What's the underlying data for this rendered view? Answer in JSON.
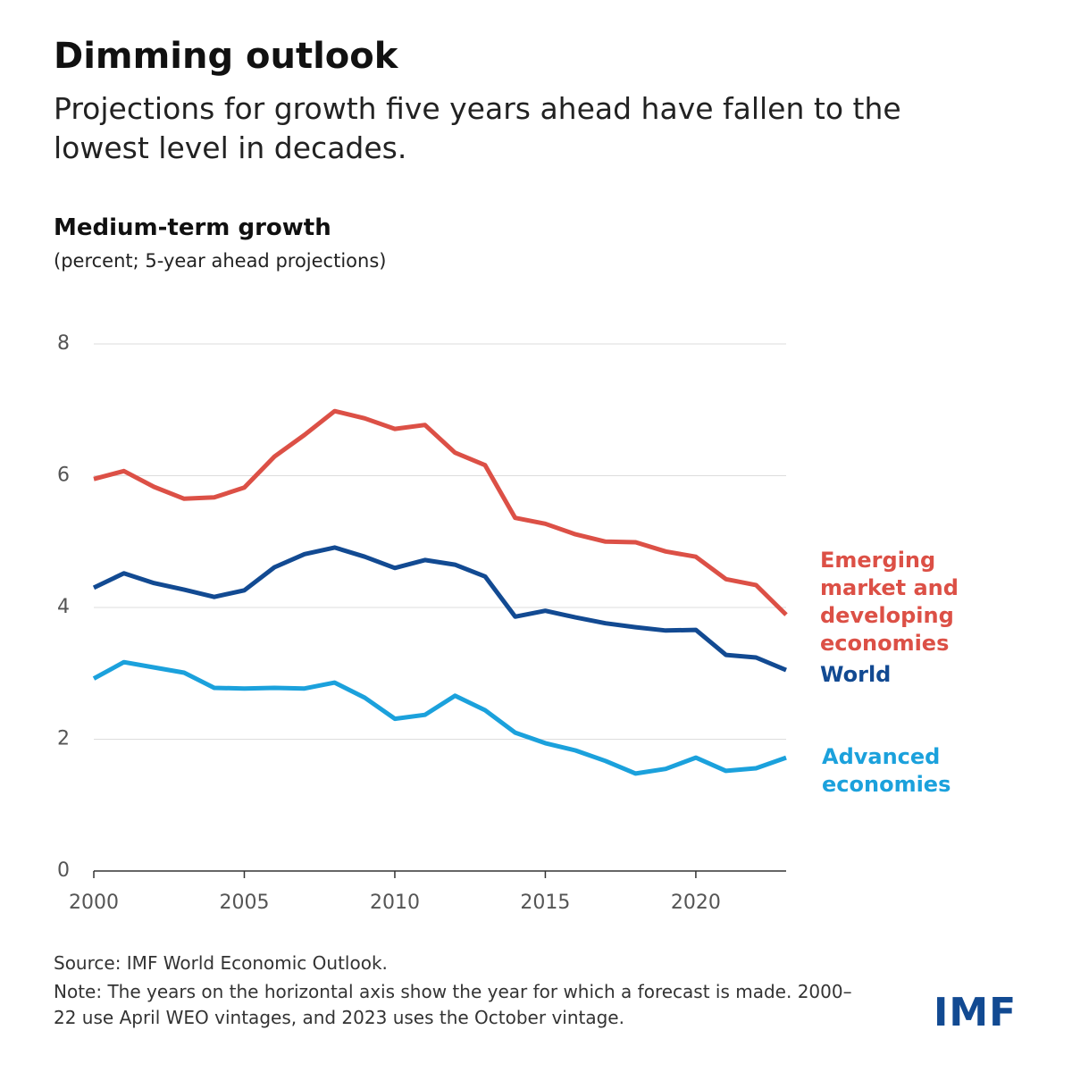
{
  "chart_data": {
    "type": "line",
    "title": "Dimming outlook",
    "subtitle": "Projections for growth five years ahead have fallen to the lowest level in decades.",
    "chart_title": "Medium-term growth",
    "y_label": "(percent; 5-year ahead projections)",
    "x": [
      2000,
      2001,
      2002,
      2003,
      2004,
      2005,
      2006,
      2007,
      2008,
      2009,
      2010,
      2011,
      2012,
      2013,
      2014,
      2015,
      2016,
      2017,
      2018,
      2019,
      2020,
      2021,
      2022,
      2023
    ],
    "xlim": [
      2000,
      2023
    ],
    "xticks": [
      2000,
      2005,
      2010,
      2015,
      2020
    ],
    "ylim": [
      0,
      8
    ],
    "yticks": [
      0,
      2,
      4,
      6,
      8
    ],
    "grid": true,
    "series": [
      {
        "name": "Emerging market and developing economies",
        "color": "#dc5046",
        "values": [
          5.95,
          6.07,
          5.83,
          5.65,
          5.67,
          5.82,
          6.29,
          6.62,
          6.98,
          6.87,
          6.71,
          6.77,
          6.35,
          6.16,
          5.36,
          5.27,
          5.11,
          5.0,
          4.99,
          4.85,
          4.77,
          4.43,
          4.34,
          3.89
        ]
      },
      {
        "name": "World",
        "color": "#124a92",
        "values": [
          4.3,
          4.52,
          4.37,
          4.27,
          4.16,
          4.26,
          4.61,
          4.81,
          4.91,
          4.77,
          4.6,
          4.72,
          4.65,
          4.47,
          3.86,
          3.95,
          3.85,
          3.76,
          3.7,
          3.65,
          3.66,
          3.28,
          3.24,
          3.05
        ]
      },
      {
        "name": "Advanced economies",
        "color": "#1ba1dc",
        "values": [
          2.92,
          3.17,
          3.09,
          3.01,
          2.78,
          2.77,
          2.78,
          2.77,
          2.86,
          2.63,
          2.31,
          2.37,
          2.66,
          2.44,
          2.1,
          1.94,
          1.83,
          1.67,
          1.48,
          1.55,
          1.72,
          1.52,
          1.56,
          1.72
        ]
      }
    ],
    "source": "Source: IMF World Economic Outlook.",
    "note": "Note: The years on the horizontal axis show the year for which a forecast is made. 2000–22 use April WEO vintages, and 2023 uses the October vintage.",
    "logo": "IMF"
  }
}
